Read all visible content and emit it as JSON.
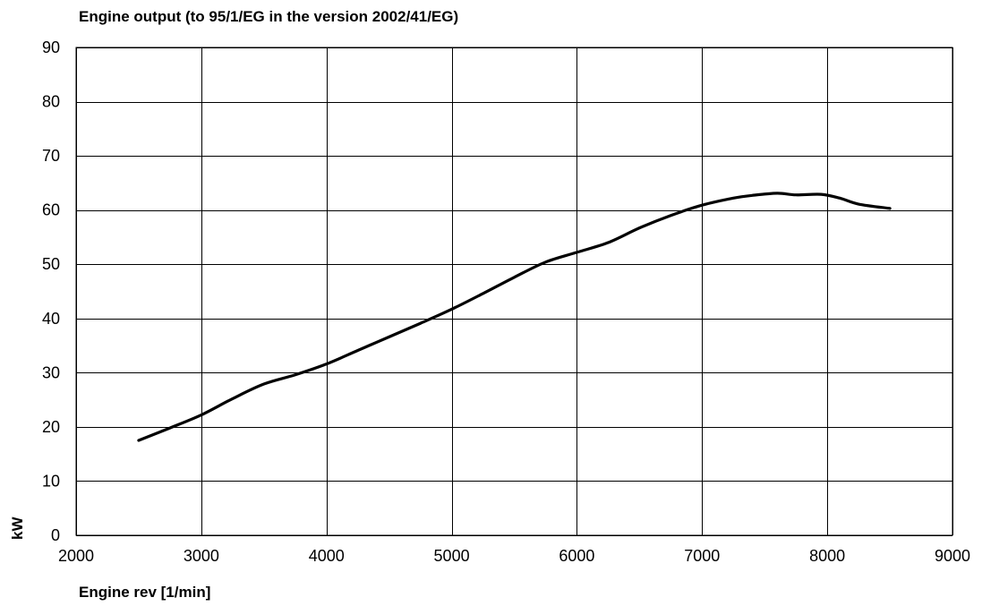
{
  "chart_data": {
    "type": "line",
    "title": "Engine output (to 95/1/EG in the version 2002/41/EG)",
    "xlabel": "Engine rev [1/min]",
    "ylabel": "kW",
    "xlim": [
      2000,
      9000
    ],
    "ylim": [
      0,
      90
    ],
    "xticks": [
      2000,
      3000,
      4000,
      5000,
      6000,
      7000,
      8000,
      9000
    ],
    "yticks": [
      0,
      10,
      20,
      30,
      40,
      50,
      60,
      70,
      80,
      90
    ],
    "grid": true,
    "legend": "none",
    "line_color": "#000000",
    "series": [
      {
        "x": [
          2500,
          2750,
          3000,
          3250,
          3500,
          3750,
          4000,
          4250,
          4500,
          4750,
          5000,
          5250,
          5500,
          5750,
          6000,
          6250,
          6500,
          6750,
          7000,
          7250,
          7400,
          7600,
          7750,
          7950,
          8100,
          8250,
          8500
        ],
        "values": [
          17.5,
          19.8,
          22.2,
          25.2,
          27.9,
          29.6,
          31.6,
          34.1,
          36.6,
          39.1,
          41.7,
          44.6,
          47.6,
          50.4,
          52.2,
          54.0,
          56.7,
          59.0,
          60.9,
          62.2,
          62.7,
          63.1,
          62.8,
          62.9,
          62.2,
          61.1,
          60.3
        ]
      }
    ]
  }
}
